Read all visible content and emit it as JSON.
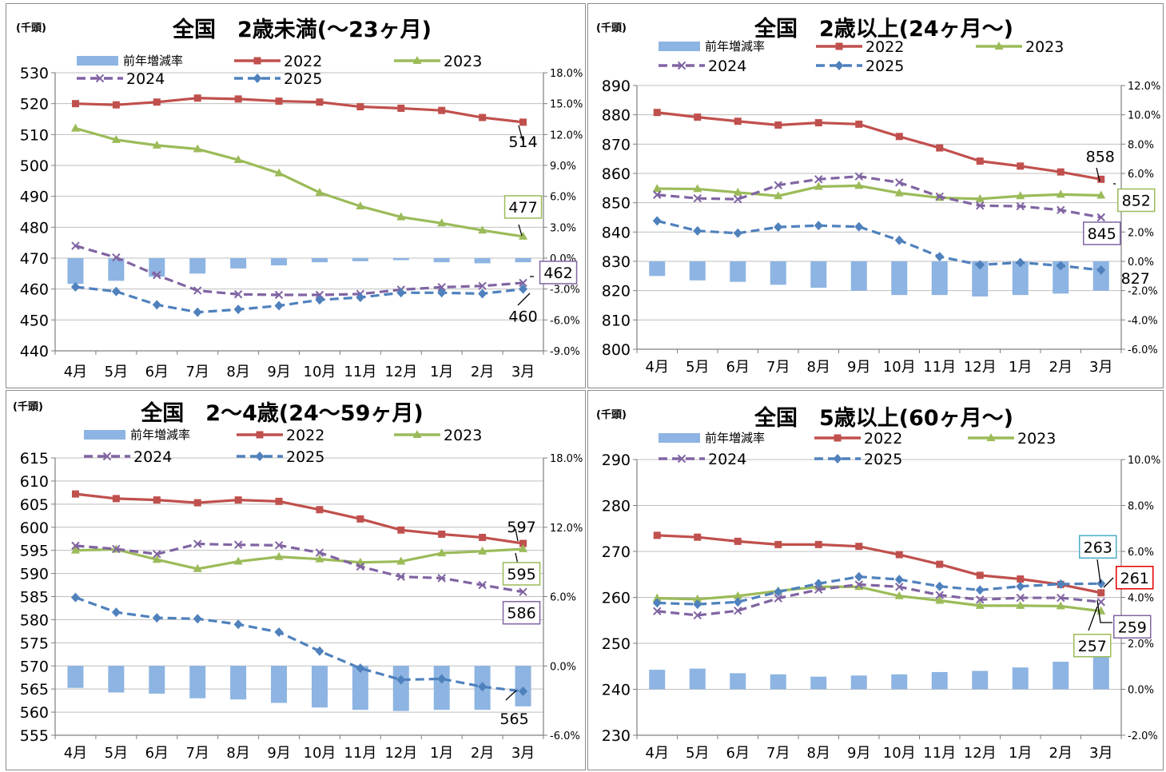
{
  "chart_data": [
    {
      "type": "line",
      "title": "全国　2歳未満(～23ヶ月)",
      "unit_label": "(千頭)",
      "categories": [
        "4月",
        "5月",
        "6月",
        "7月",
        "8月",
        "9月",
        "10月",
        "11月",
        "12月",
        "1月",
        "2月",
        "3月"
      ],
      "ylim": [
        440,
        530
      ],
      "yticks": [
        440,
        450,
        460,
        470,
        480,
        490,
        500,
        510,
        520,
        530
      ],
      "y2lim": [
        -9,
        18
      ],
      "y2ticks": [
        "-9.0%",
        "-6.0%",
        "-3.0%",
        "0.0%",
        "3.0%",
        "6.0%",
        "9.0%",
        "12.0%",
        "15.0%",
        "18.0%"
      ],
      "legend": [
        "前年増減率",
        "2022",
        "2023",
        "2024",
        "2025"
      ],
      "bars": {
        "name": "前年増減率",
        "values": [
          -2.5,
          -2.2,
          -1.8,
          -1.5,
          -1.0,
          -0.7,
          -0.4,
          -0.3,
          -0.2,
          -0.4,
          -0.5,
          -0.4
        ]
      },
      "series": [
        {
          "name": "2022",
          "values": [
            520,
            519.6,
            520.5,
            521.8,
            521.5,
            520.8,
            520.5,
            519,
            518.5,
            517.8,
            515.5,
            514
          ]
        },
        {
          "name": "2023",
          "values": [
            512,
            508.3,
            506.5,
            505.3,
            501.8,
            497.5,
            491.2,
            486.8,
            483.3,
            481.3,
            479,
            477
          ]
        },
        {
          "name": "2024",
          "values": [
            474,
            470.2,
            464.5,
            459.5,
            458.3,
            458.1,
            458.1,
            458.4,
            459.8,
            460.6,
            461,
            462
          ]
        },
        {
          "name": "2025",
          "values": [
            460.7,
            459.2,
            454.9,
            452.5,
            453.4,
            454.6,
            456.5,
            457.3,
            458.8,
            458.8,
            458.5,
            460
          ]
        }
      ],
      "callouts": [
        "514",
        "477",
        "462",
        "460"
      ]
    },
    {
      "type": "line",
      "title": "全国　2歳以上(24ヶ月～)",
      "unit_label": "(千頭)",
      "categories": [
        "4月",
        "5月",
        "6月",
        "7月",
        "8月",
        "9月",
        "10月",
        "11月",
        "12月",
        "1月",
        "2月",
        "3月"
      ],
      "ylim": [
        800,
        890
      ],
      "yticks": [
        800,
        810,
        820,
        830,
        840,
        850,
        860,
        870,
        880,
        890
      ],
      "y2lim": [
        -6,
        12
      ],
      "y2ticks": [
        "-6.0%",
        "-4.0%",
        "-2.0%",
        "0.0%",
        "2.0%",
        "4.0%",
        "6.0%",
        "8.0%",
        "10.0%",
        "12.0%"
      ],
      "legend": [
        "前年増減率",
        "2022",
        "2023",
        "2024",
        "2025"
      ],
      "bars": {
        "name": "前年増減率",
        "values": [
          -1.0,
          -1.3,
          -1.4,
          -1.6,
          -1.8,
          -2.0,
          -2.3,
          -2.3,
          -2.4,
          -2.3,
          -2.2,
          -2.0
        ]
      },
      "series": [
        {
          "name": "2022",
          "values": [
            880.8,
            879.2,
            877.8,
            876.5,
            877.3,
            876.8,
            872.6,
            868.7,
            864.2,
            862.5,
            860.5,
            858
          ]
        },
        {
          "name": "2023",
          "values": [
            854.8,
            854.7,
            853.5,
            852.3,
            855.5,
            855.8,
            853.3,
            851.7,
            851.3,
            852.3,
            852.8,
            852.5
          ]
        },
        {
          "name": "2024",
          "values": [
            852.7,
            851.5,
            851.2,
            856,
            858,
            859,
            856.9,
            852.1,
            849,
            848.8,
            847.5,
            845
          ]
        },
        {
          "name": "2025",
          "values": [
            843.8,
            840.4,
            839.6,
            841.7,
            842.2,
            841.8,
            837.2,
            831.6,
            828.8,
            829.6,
            828.5,
            827
          ]
        }
      ],
      "callouts": [
        "858",
        "852",
        "845",
        "827"
      ]
    },
    {
      "type": "line",
      "title": "全国　2～4歳(24～59ヶ月)",
      "unit_label": "(千頭)",
      "categories": [
        "4月",
        "5月",
        "6月",
        "7月",
        "8月",
        "9月",
        "10月",
        "11月",
        "12月",
        "1月",
        "2月",
        "3月"
      ],
      "ylim": [
        555,
        615
      ],
      "yticks": [
        555,
        560,
        565,
        570,
        575,
        580,
        585,
        590,
        595,
        600,
        605,
        610,
        615
      ],
      "y2lim": [
        -6,
        18
      ],
      "y2ticks": [
        "-6.0%",
        "0.0%",
        "6.0%",
        "12.0%",
        "18.0%"
      ],
      "legend": [
        "前年増減率",
        "2022",
        "2023",
        "2024",
        "2025"
      ],
      "bars": {
        "name": "前年増減率",
        "values": [
          -1.9,
          -2.3,
          -2.4,
          -2.8,
          -2.9,
          -3.2,
          -3.6,
          -3.8,
          -3.9,
          -3.8,
          -3.8,
          -3.5
        ]
      },
      "series": [
        {
          "name": "2022",
          "values": [
            607.2,
            606.2,
            605.9,
            605.3,
            605.9,
            605.6,
            603.8,
            601.8,
            599.4,
            598.5,
            597.8,
            596.5
          ]
        },
        {
          "name": "2023",
          "values": [
            595,
            595.2,
            593,
            591,
            592.6,
            593.6,
            593.1,
            592.4,
            592.6,
            594.4,
            594.8,
            595.3
          ]
        },
        {
          "name": "2024",
          "values": [
            596,
            595.3,
            594.2,
            596.4,
            596.2,
            596.1,
            594.5,
            591.5,
            589.3,
            589,
            587.5,
            586
          ]
        },
        {
          "name": "2025",
          "values": [
            584.8,
            581.6,
            580.4,
            580.2,
            579,
            577.3,
            573.2,
            569.5,
            567,
            567.2,
            565.5,
            564.5
          ]
        }
      ],
      "callouts": [
        "597",
        "595",
        "586",
        "565"
      ]
    },
    {
      "type": "line",
      "title": "全国　5歳以上(60ヶ月～)",
      "unit_label": "(千頭)",
      "categories": [
        "4月",
        "5月",
        "6月",
        "7月",
        "8月",
        "9月",
        "10月",
        "11月",
        "12月",
        "1月",
        "2月",
        "3月"
      ],
      "ylim": [
        230,
        290
      ],
      "yticks": [
        230,
        240,
        250,
        260,
        270,
        280,
        290
      ],
      "y2lim": [
        -2,
        10
      ],
      "y2ticks": [
        "-2.0%",
        "0.0%",
        "2.0%",
        "4.0%",
        "6.0%",
        "8.0%",
        "10.0%"
      ],
      "legend": [
        "前年増減率",
        "2022",
        "2023",
        "2024",
        "2025"
      ],
      "bars": {
        "name": "前年増減率",
        "values": [
          0.85,
          0.9,
          0.7,
          0.65,
          0.55,
          0.6,
          0.65,
          0.75,
          0.8,
          0.95,
          1.2,
          1.45
        ]
      },
      "series": [
        {
          "name": "2022",
          "values": [
            273.5,
            273.1,
            272.2,
            271.5,
            271.5,
            271.1,
            269.3,
            267.2,
            264.8,
            264,
            262.8,
            261
          ]
        },
        {
          "name": "2023",
          "values": [
            259.8,
            259.6,
            260.3,
            261.4,
            262.3,
            262.3,
            260.3,
            259.3,
            258.2,
            258.2,
            258.1,
            257
          ]
        },
        {
          "name": "2024",
          "values": [
            257,
            256.1,
            257.1,
            259.8,
            261.7,
            262.8,
            262.3,
            260.5,
            259.5,
            259.9,
            259.9,
            259
          ]
        },
        {
          "name": "2025",
          "values": [
            258.8,
            258.5,
            259,
            261.2,
            263,
            264.5,
            263.9,
            262.4,
            261.6,
            262.4,
            262.9,
            263
          ]
        }
      ],
      "callouts": [
        "263",
        "261",
        "259",
        "257"
      ]
    }
  ],
  "style": {
    "colors": {
      "bar": "#8db4e2",
      "2022": "#c0504d",
      "2023": "#9bbb59",
      "2024": "#8064a2",
      "2025": "#4f81bd",
      "grid": "#bfbfbf",
      "axis": "#7f7f7f",
      "box_green": "#9bbb59",
      "box_purple": "#8064a2",
      "box_blue": "#4bacc6",
      "box_red": "#e00000"
    },
    "markers": {
      "2022": "square",
      "2023": "triangle",
      "2024": "x-mark",
      "2025": "diamond"
    },
    "dashed": [
      "2024",
      "2025"
    ]
  }
}
